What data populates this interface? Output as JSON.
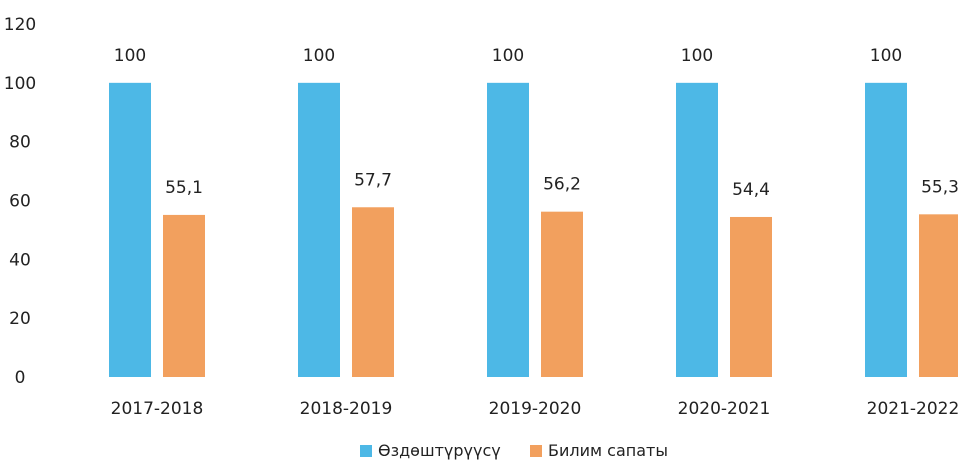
{
  "chart_data": {
    "type": "bar",
    "categories": [
      "2017-2018",
      "2018-2019",
      "2019-2020",
      "2020-2021",
      "2021-2022"
    ],
    "series": [
      {
        "name": "Өздөштүрүүсү",
        "values": [
          100,
          100,
          100,
          100,
          100
        ],
        "labels": [
          "100",
          "100",
          "100",
          "100",
          "100"
        ],
        "color": "#4db8e6"
      },
      {
        "name": "Билим сапаты",
        "values": [
          55.1,
          57.7,
          56.2,
          54.4,
          55.3
        ],
        "labels": [
          "55,1",
          "57,7",
          "56,2",
          "54,4",
          "55,3"
        ],
        "color": "#f2a05e"
      }
    ],
    "yticks": [
      "0",
      "20",
      "40",
      "60",
      "80",
      "100",
      "120"
    ],
    "ylim": [
      0,
      120
    ],
    "grid": false,
    "legend_position": "bottom-center"
  }
}
